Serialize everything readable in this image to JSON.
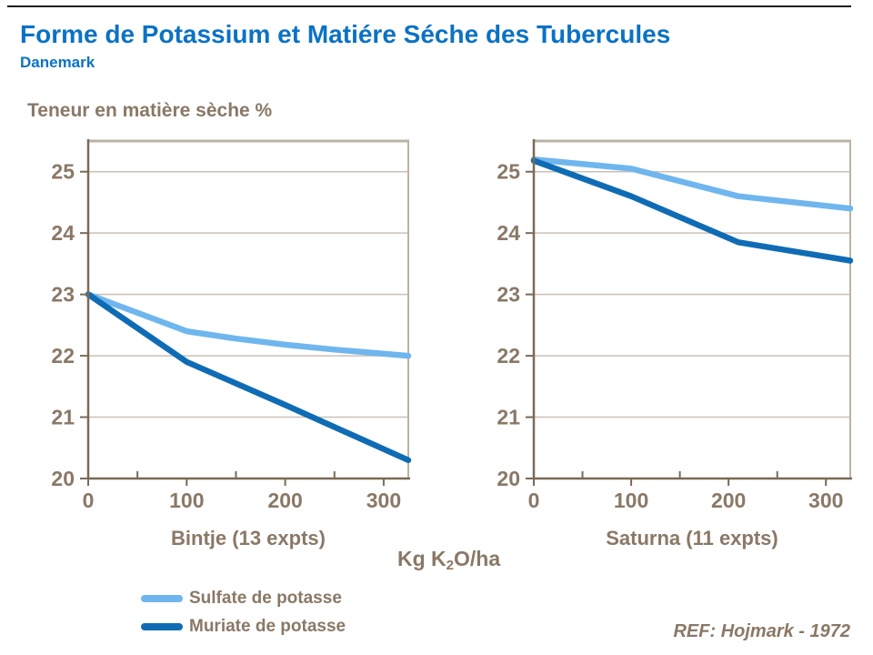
{
  "header": {
    "title": "Forme de Potassium et Matiére Séche des Tubercules",
    "subtitle": "Danemark",
    "y_axis_title": "Teneur en matière sèche %"
  },
  "x_axis_unit": {
    "pre": "Kg K",
    "sub": "2",
    "post": "O/ha"
  },
  "legend": [
    {
      "label": "Sulfate de potasse",
      "color": "#6fb6ee"
    },
    {
      "label": "Muriate de potasse",
      "color": "#0f6cb4"
    }
  ],
  "footer": {
    "reference": "REF: Hojmark - 1972"
  },
  "colors": {
    "title_blue": "#0b72c4",
    "text_brown": "#8a7866",
    "axis_dark": "#7a6a57",
    "frame_tan": "#bcb1a5",
    "gridline": "#cbc0b4",
    "sulfate": "#6fb6ee",
    "muriate": "#0f6cb4"
  },
  "chart_data": [
    {
      "type": "line",
      "id": "bintje",
      "title": "Bintje (13 expts)",
      "xlabel": "Kg K2O/ha",
      "ylabel": "Teneur en matière sèche %",
      "xlim": [
        0,
        325
      ],
      "ylim": [
        20,
        25.5
      ],
      "x_ticks": [
        0,
        100,
        200,
        300
      ],
      "x_minor_ticks": [
        50,
        150,
        250
      ],
      "y_ticks": [
        20,
        21,
        22,
        23,
        24,
        25
      ],
      "grid": "horizontal",
      "series": [
        {
          "name": "Sulfate de potasse",
          "color": "#6fb6ee",
          "x": [
            0,
            100,
            150,
            200,
            250,
            325
          ],
          "y": [
            23.0,
            22.4,
            22.28,
            22.18,
            22.1,
            22.0
          ]
        },
        {
          "name": "Muriate de potasse",
          "color": "#0f6cb4",
          "x": [
            0,
            100,
            200,
            325
          ],
          "y": [
            23.0,
            21.9,
            21.2,
            20.3
          ]
        }
      ]
    },
    {
      "type": "line",
      "id": "saturna",
      "title": "Saturna (11 expts)",
      "xlabel": "Kg K2O/ha",
      "ylabel": "Teneur en matière sèche %",
      "xlim": [
        0,
        325
      ],
      "ylim": [
        20,
        25.5
      ],
      "x_ticks": [
        0,
        100,
        200,
        300
      ],
      "x_minor_ticks": [
        50,
        150,
        250
      ],
      "y_ticks": [
        20,
        21,
        22,
        23,
        24,
        25
      ],
      "grid": "horizontal",
      "series": [
        {
          "name": "Sulfate de potasse",
          "color": "#6fb6ee",
          "x": [
            0,
            100,
            210,
            325
          ],
          "y": [
            25.2,
            25.05,
            24.6,
            24.4
          ]
        },
        {
          "name": "Muriate de potasse",
          "color": "#0f6cb4",
          "x": [
            0,
            100,
            210,
            325
          ],
          "y": [
            25.18,
            24.6,
            23.85,
            23.55
          ]
        }
      ]
    }
  ]
}
